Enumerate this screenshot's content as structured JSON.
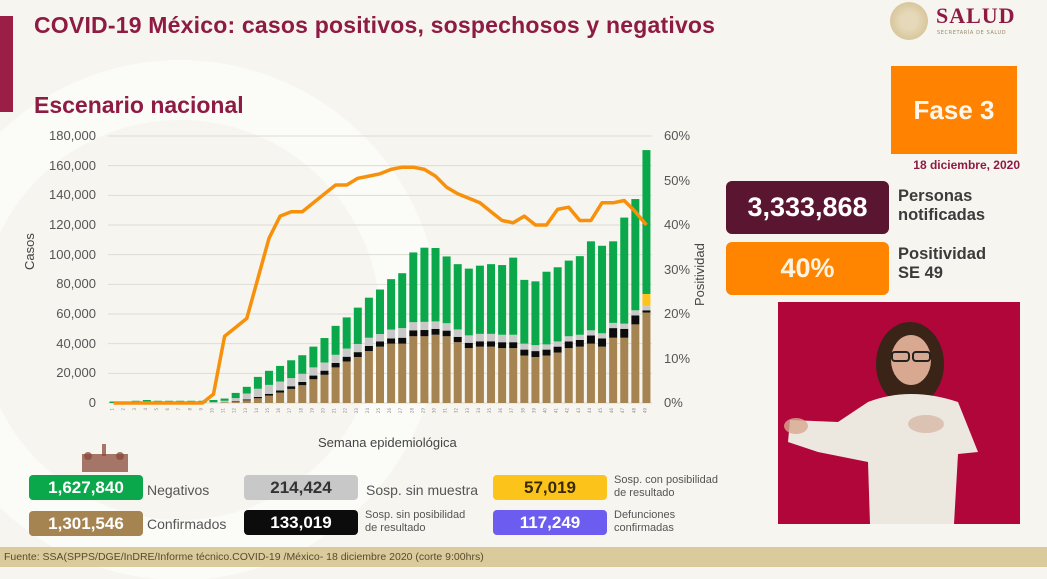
{
  "header": {
    "title": "COVID-19 México: casos positivos, sospechosos y negativos",
    "subtitle": "Escenario nacional",
    "logo_name": "SALUD",
    "logo_subtitle": "SECRETARÍA DE SALUD"
  },
  "status": {
    "phase": "Fase 3",
    "date": "18 diciembre, 2020"
  },
  "kpis": {
    "notified_value": "3,333,868",
    "notified_label_1": "Personas",
    "notified_label_2": "notificadas",
    "positivity_value": "40%",
    "positivity_label_1": "Positividad",
    "positivity_label_2": "SE 49"
  },
  "legend": {
    "negativos": {
      "value": "1,627,840",
      "label": "Negativos",
      "color": "#0aa84a"
    },
    "confirmados": {
      "value": "1,301,546",
      "label": "Confirmados",
      "color": "#a58451"
    },
    "sin_muestra": {
      "value": "214,424",
      "label": "Sosp. sin muestra",
      "color": "#c8c8c8"
    },
    "sin_posibilidad": {
      "value": "133,019",
      "label_1": "Sosp. sin posibilidad",
      "label_2": "de resultado",
      "color": "#0c0c0c"
    },
    "con_posibilidad": {
      "value": "57,019",
      "label_1": "Sosp. con posibilidad",
      "label_2": "de resultado",
      "color": "#fcc41a"
    },
    "defunciones": {
      "value": "117,249",
      "label_1": "Defunciones",
      "label_2": "confirmadas",
      "color": "#6c5cf0"
    },
    "gob_logo_text": "GOBIERNO DE MÉXICO"
  },
  "footer": {
    "source": "Fuente: SSA(SPPS/DGE/InDRE/Informe técnico.COVID-19 /México- 18 diciembre 2020 (corte 9:00hrs)"
  },
  "chart_data": {
    "type": "bar",
    "stacked": true,
    "title": "Escenario nacional",
    "xlabel": "Semana epidemiológica",
    "ylabel": "Casos",
    "y2label": "Positividad",
    "ylim": [
      0,
      180000
    ],
    "y2lim": [
      0,
      60
    ],
    "yticks": [
      "0",
      "20,000",
      "40,000",
      "60,000",
      "80,000",
      "100,000",
      "120,000",
      "140,000",
      "160,000",
      "180,000"
    ],
    "y2ticks": [
      "0%",
      "10%",
      "20%",
      "30%",
      "40%",
      "50%",
      "60%"
    ],
    "grid": true,
    "categories": [
      1,
      2,
      3,
      4,
      5,
      6,
      7,
      8,
      9,
      10,
      11,
      12,
      13,
      14,
      15,
      16,
      17,
      18,
      19,
      20,
      21,
      22,
      23,
      24,
      25,
      26,
      27,
      28,
      29,
      30,
      31,
      32,
      33,
      34,
      35,
      36,
      37,
      38,
      39,
      40,
      41,
      42,
      43,
      44,
      45,
      46,
      47,
      48,
      49
    ],
    "series": [
      {
        "name": "Confirmados",
        "color": "#a58451",
        "values": [
          0,
          0,
          0,
          0,
          0,
          0,
          0,
          0,
          0,
          50,
          400,
          1000,
          1800,
          3200,
          5000,
          7000,
          9500,
          12000,
          16000,
          19000,
          24000,
          28000,
          31000,
          35000,
          38000,
          40000,
          40000,
          45000,
          45000,
          46000,
          45000,
          41000,
          37000,
          38000,
          38000,
          37000,
          37000,
          32000,
          31000,
          32000,
          34000,
          37000,
          38000,
          40000,
          38000,
          44000,
          44000,
          53000,
          61000
        ]
      },
      {
        "name": "Sosp. sin posibilidad de resultado",
        "color": "#0c0c0c",
        "values": [
          0,
          0,
          0,
          0,
          0,
          0,
          0,
          0,
          0,
          0,
          100,
          300,
          600,
          900,
          1200,
          1500,
          1800,
          2200,
          2500,
          2800,
          3000,
          3200,
          3300,
          3500,
          3500,
          3500,
          4000,
          4000,
          4200,
          4000,
          3800,
          3600,
          3600,
          3600,
          3600,
          4000,
          4000,
          4000,
          4000,
          4000,
          4000,
          4500,
          4500,
          5500,
          5500,
          6500,
          6000,
          6000,
          1500
        ]
      },
      {
        "name": "Sosp. sin muestra",
        "color": "#c8c8c8",
        "values": [
          0,
          0,
          0,
          0,
          0,
          0,
          0,
          0,
          0,
          500,
          1000,
          2000,
          4000,
          5500,
          6000,
          6000,
          5500,
          5500,
          5500,
          5500,
          5500,
          5500,
          5500,
          5500,
          5000,
          6000,
          6500,
          5500,
          5500,
          5000,
          5000,
          5000,
          5000,
          5000,
          5000,
          5000,
          5000,
          4000,
          4000,
          3500,
          3500,
          3500,
          3500,
          3500,
          3500,
          3500,
          3500,
          3500,
          3000
        ]
      },
      {
        "name": "Sosp. con posibilidad de resultado",
        "color": "#fcc41a",
        "values": [
          0,
          0,
          0,
          0,
          0,
          0,
          0,
          0,
          0,
          0,
          0,
          0,
          0,
          0,
          0,
          0,
          0,
          0,
          0,
          0,
          0,
          0,
          0,
          0,
          0,
          0,
          0,
          0,
          0,
          0,
          0,
          0,
          0,
          0,
          0,
          0,
          0,
          0,
          0,
          0,
          0,
          0,
          0,
          0,
          0,
          0,
          0,
          0,
          8000
        ]
      },
      {
        "name": "Negativos",
        "color": "#0aa84a",
        "values": [
          1000,
          1000,
          1500,
          2000,
          1500,
          1500,
          1500,
          1500,
          1500,
          1500,
          1500,
          3500,
          4500,
          8000,
          9500,
          10500,
          12000,
          12500,
          14000,
          16500,
          19500,
          21000,
          24500,
          27000,
          30000,
          34000,
          37000,
          47000,
          50000,
          49500,
          45000,
          44000,
          45000,
          46000,
          47000,
          47000,
          52000,
          43000,
          43000,
          49000,
          50000,
          51000,
          53000,
          60000,
          59000,
          55000,
          71500,
          75000,
          97000
        ]
      }
    ],
    "line": {
      "name": "Positividad (%)",
      "color": "#f7910b",
      "axis": "y2",
      "values": [
        0,
        0,
        0,
        0,
        0,
        0,
        0,
        0,
        0,
        2,
        15,
        17,
        19,
        28,
        37,
        42,
        43,
        43,
        45,
        47,
        49,
        49,
        50.5,
        51,
        51.5,
        52.5,
        53,
        53,
        52.5,
        51,
        48.5,
        47,
        46,
        45,
        43,
        41,
        40.5,
        42,
        40,
        40,
        43.5,
        44,
        41,
        41,
        45,
        45,
        45.5,
        43,
        40
      ]
    }
  }
}
